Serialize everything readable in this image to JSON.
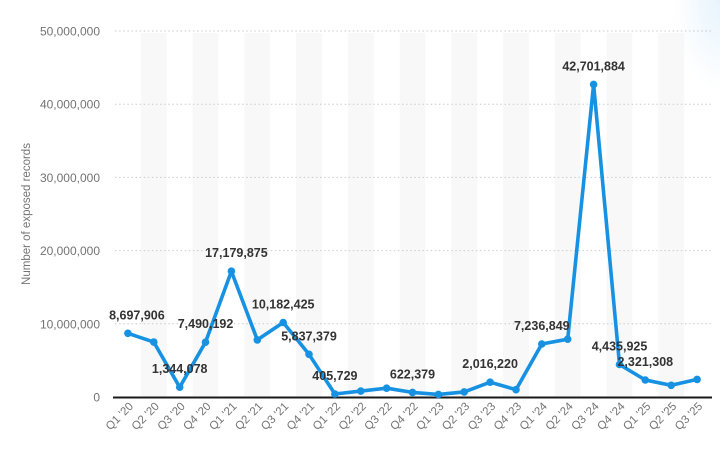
{
  "chart_data": {
    "type": "line",
    "title": "",
    "ylabel": "Number of exposed records",
    "xlabel": "",
    "categories": [
      "Q1 '20",
      "Q2 '20",
      "Q3 '20",
      "Q4 '20",
      "Q1 '21",
      "Q2 '21",
      "Q3 '21",
      "Q4 '21",
      "Q1 '22",
      "Q2 '22",
      "Q3 '22",
      "Q4 '22",
      "Q1 '23",
      "Q2 '23",
      "Q3 '23",
      "Q4 '23",
      "Q1 '24",
      "Q2 '24",
      "Q3 '24",
      "Q4 '24",
      "Q1 '25",
      "Q2 '25",
      "Q3 '25"
    ],
    "series": [
      {
        "name": "Number of exposed records",
        "values": [
          8697906,
          7500000,
          1344078,
          7490192,
          17179875,
          7800000,
          10182425,
          5837379,
          405729,
          800000,
          1200000,
          622379,
          350000,
          700000,
          2016220,
          1000000,
          7236849,
          7900000,
          42701884,
          4435925,
          2321308,
          1600000,
          2400000
        ],
        "point_labels": [
          "8,697,906",
          "",
          "1,344,078",
          "7,490,192",
          "17,179,875",
          "",
          "10,182,425",
          "5,837,379",
          "405,729",
          "",
          "",
          "622,379",
          "",
          "",
          "2,016,220",
          "",
          "7,236,849",
          "",
          "42,701,884",
          "4,435,925",
          "2,321,308",
          "",
          ""
        ]
      }
    ],
    "ylim": [
      0,
      50000000
    ],
    "yticks": [
      0,
      10000000,
      20000000,
      30000000,
      40000000,
      50000000
    ],
    "ytick_labels": [
      "0",
      "10,000,000",
      "20,000,000",
      "30,000,000",
      "40,000,000",
      "50,000,000"
    ],
    "grid": "horizontal-dotted",
    "legend_position": "none",
    "banded_columns": "every-other-quarter",
    "label_dx": {
      "0": 9,
      "4": 5
    },
    "colors": {
      "line": "#1792e3",
      "marker": "#1792e3",
      "point_label": "#333333",
      "axis_text": "#737373",
      "gridline": "#cbcbcb",
      "band": "#f8f8f8",
      "baseline": "#1a1a1a",
      "background": "#ffffff"
    }
  }
}
